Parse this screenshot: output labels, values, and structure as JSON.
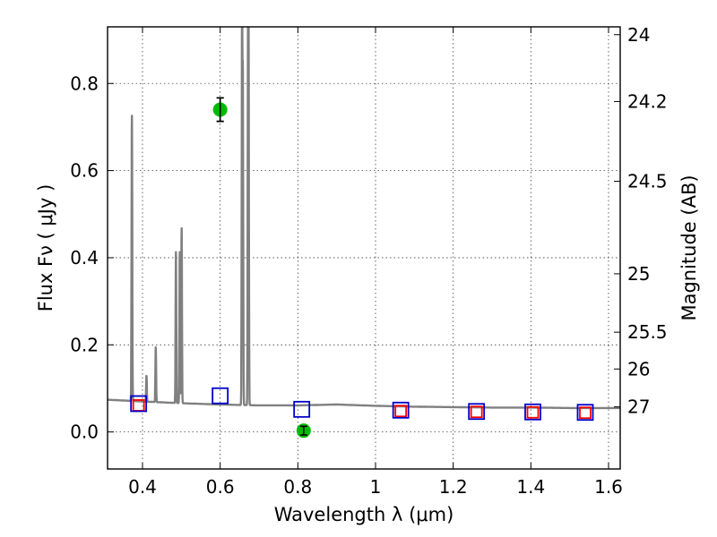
{
  "chart_data": {
    "type": "scatter",
    "title": "",
    "xlabel": "Wavelength  λ (μm)",
    "ylabel": "Flux  Fν  ( μJy )",
    "y2label": "Magnitude (AB)",
    "xlim": [
      0.31,
      1.63
    ],
    "ylim": [
      -0.085,
      0.93
    ],
    "xticks": [
      0.4,
      0.6,
      0.8,
      1.0,
      1.2,
      1.4,
      1.6
    ],
    "xtick_labels": [
      "0.4",
      "0.6",
      "0.8",
      "1",
      "1.2",
      "1.4",
      "1.6"
    ],
    "yticks": [
      0.0,
      0.2,
      0.4,
      0.6,
      0.8
    ],
    "ytick_labels": [
      "0.0",
      "0.2",
      "0.4",
      "0.6",
      "0.8"
    ],
    "mag_ticks": [
      24,
      24.2,
      24.5,
      25,
      25.5,
      26,
      27
    ],
    "mag_tick_labels": [
      "24",
      "24.2",
      "24.5",
      "25",
      "25.5",
      "26",
      "27"
    ],
    "grid": true,
    "series": [
      {
        "name": "model spectrum",
        "kind": "line",
        "color": "#808080",
        "continuum": [
          [
            0.31,
            0.074
          ],
          [
            0.4,
            0.07
          ],
          [
            0.5,
            0.066
          ],
          [
            0.6,
            0.063
          ],
          [
            0.7,
            0.061
          ],
          [
            0.8,
            0.061
          ],
          [
            0.9,
            0.063
          ],
          [
            1.0,
            0.06
          ],
          [
            1.1,
            0.058
          ],
          [
            1.2,
            0.057
          ],
          [
            1.3,
            0.056
          ],
          [
            1.4,
            0.056
          ],
          [
            1.5,
            0.055
          ],
          [
            1.63,
            0.055
          ]
        ],
        "emission_lines": [
          {
            "x": 0.3727,
            "peak": 0.73
          },
          {
            "x": 0.4102,
            "peak": 0.13
          },
          {
            "x": 0.4341,
            "peak": 0.195
          },
          {
            "x": 0.4861,
            "peak": 0.415
          },
          {
            "x": 0.4959,
            "peak": 0.415
          },
          {
            "x": 0.5007,
            "peak": 0.47
          },
          {
            "x": 0.6563,
            "peak": 0.93
          },
          {
            "x": 0.6584,
            "peak": 0.775
          },
          {
            "x": 0.6717,
            "peak": 0.805
          },
          {
            "x": 0.6731,
            "peak": 0.78
          }
        ]
      },
      {
        "name": "model photometry",
        "kind": "square",
        "color": "#ff0000",
        "points": [
          [
            0.39,
            0.061
          ],
          [
            1.065,
            0.048
          ],
          [
            1.26,
            0.046
          ],
          [
            1.405,
            0.045
          ],
          [
            1.54,
            0.044
          ]
        ]
      },
      {
        "name": "observed photometry",
        "kind": "square",
        "color": "#0000cc",
        "points": [
          [
            0.39,
            0.065
          ],
          [
            0.6,
            0.083
          ],
          [
            0.81,
            0.052
          ],
          [
            1.065,
            0.05
          ],
          [
            1.26,
            0.047
          ],
          [
            1.405,
            0.046
          ],
          [
            1.54,
            0.045
          ]
        ]
      },
      {
        "name": "detections",
        "kind": "circle",
        "color": "#00bb00",
        "points": [
          [
            0.6,
            0.74,
            0.027
          ],
          [
            0.815,
            0.003,
            0.01
          ]
        ]
      }
    ]
  }
}
